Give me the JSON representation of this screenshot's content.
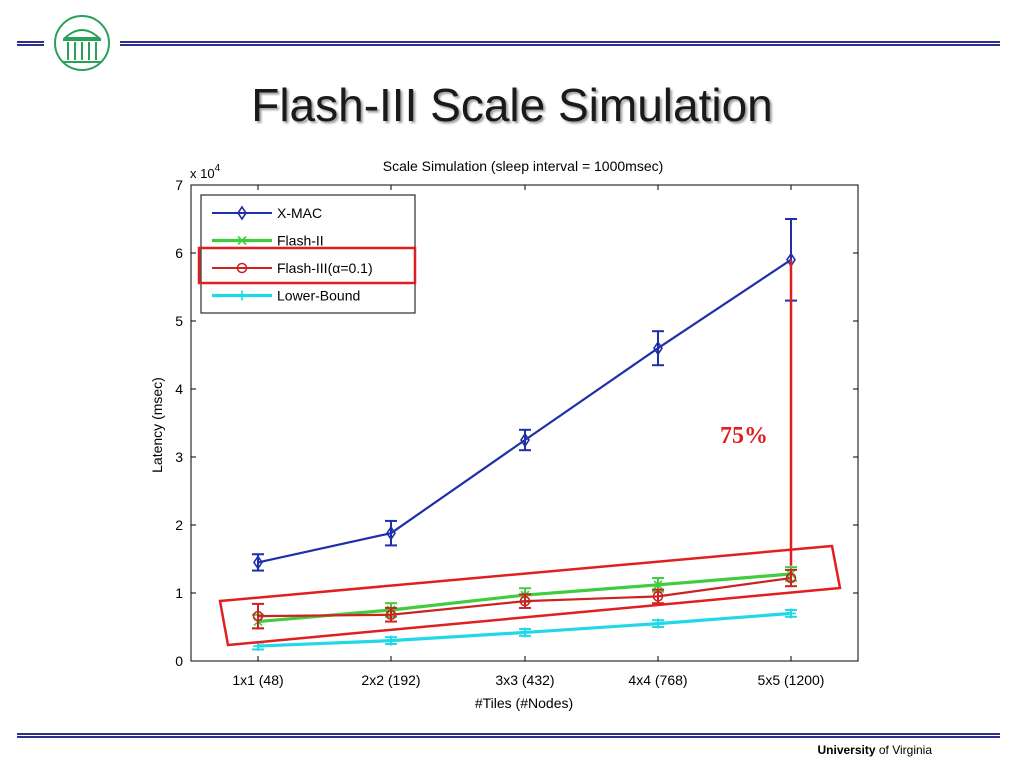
{
  "slide": {
    "title": "Flash-III Scale Simulation",
    "footer_bold": "University",
    "footer_rest": " of Virginia",
    "accent_color": "#2e2f8f",
    "logo_color": "#2aa05a"
  },
  "chart_data": {
    "type": "line",
    "title": "Scale Simulation (sleep interval = 1000msec)",
    "xlabel": "#Tiles (#Nodes)",
    "ylabel": "Latency (msec)",
    "y_multiplier": "x 10",
    "y_multiplier_exp": "4",
    "categories": [
      "1x1 (48)",
      "2x2 (192)",
      "3x3 (432)",
      "4x4 (768)",
      "5x5 (1200)"
    ],
    "ylim": [
      0,
      7
    ],
    "yticks": [
      0,
      1,
      2,
      3,
      4,
      5,
      6,
      7
    ],
    "legend_position": "top-left",
    "series": [
      {
        "name": "X-MAC",
        "color": "#1f2fa8",
        "marker": "diamond",
        "values": [
          1.45,
          1.88,
          3.25,
          4.6,
          5.9
        ],
        "errors": [
          0.12,
          0.18,
          0.15,
          0.25,
          0.6
        ]
      },
      {
        "name": "Flash-II",
        "color": "#3fcc3f",
        "marker": "x",
        "values": [
          0.58,
          0.75,
          0.97,
          1.12,
          1.28
        ],
        "errors": [
          0.1,
          0.1,
          0.1,
          0.1,
          0.1
        ]
      },
      {
        "name": "Flash-III(α=0.1)",
        "color": "#cc2222",
        "marker": "circle",
        "values": [
          0.66,
          0.68,
          0.88,
          0.95,
          1.22
        ],
        "errors": [
          0.18,
          0.1,
          0.1,
          0.1,
          0.12
        ]
      },
      {
        "name": "Lower-Bound",
        "color": "#22d8e8",
        "marker": "plus",
        "values": [
          0.22,
          0.3,
          0.42,
          0.55,
          0.7
        ],
        "errors": [
          0.05,
          0.05,
          0.05,
          0.05,
          0.05
        ]
      }
    ],
    "annotation": {
      "text": "75%",
      "color": "#e02020",
      "x_index": 4,
      "from": 5.9,
      "to": 1.4
    }
  }
}
